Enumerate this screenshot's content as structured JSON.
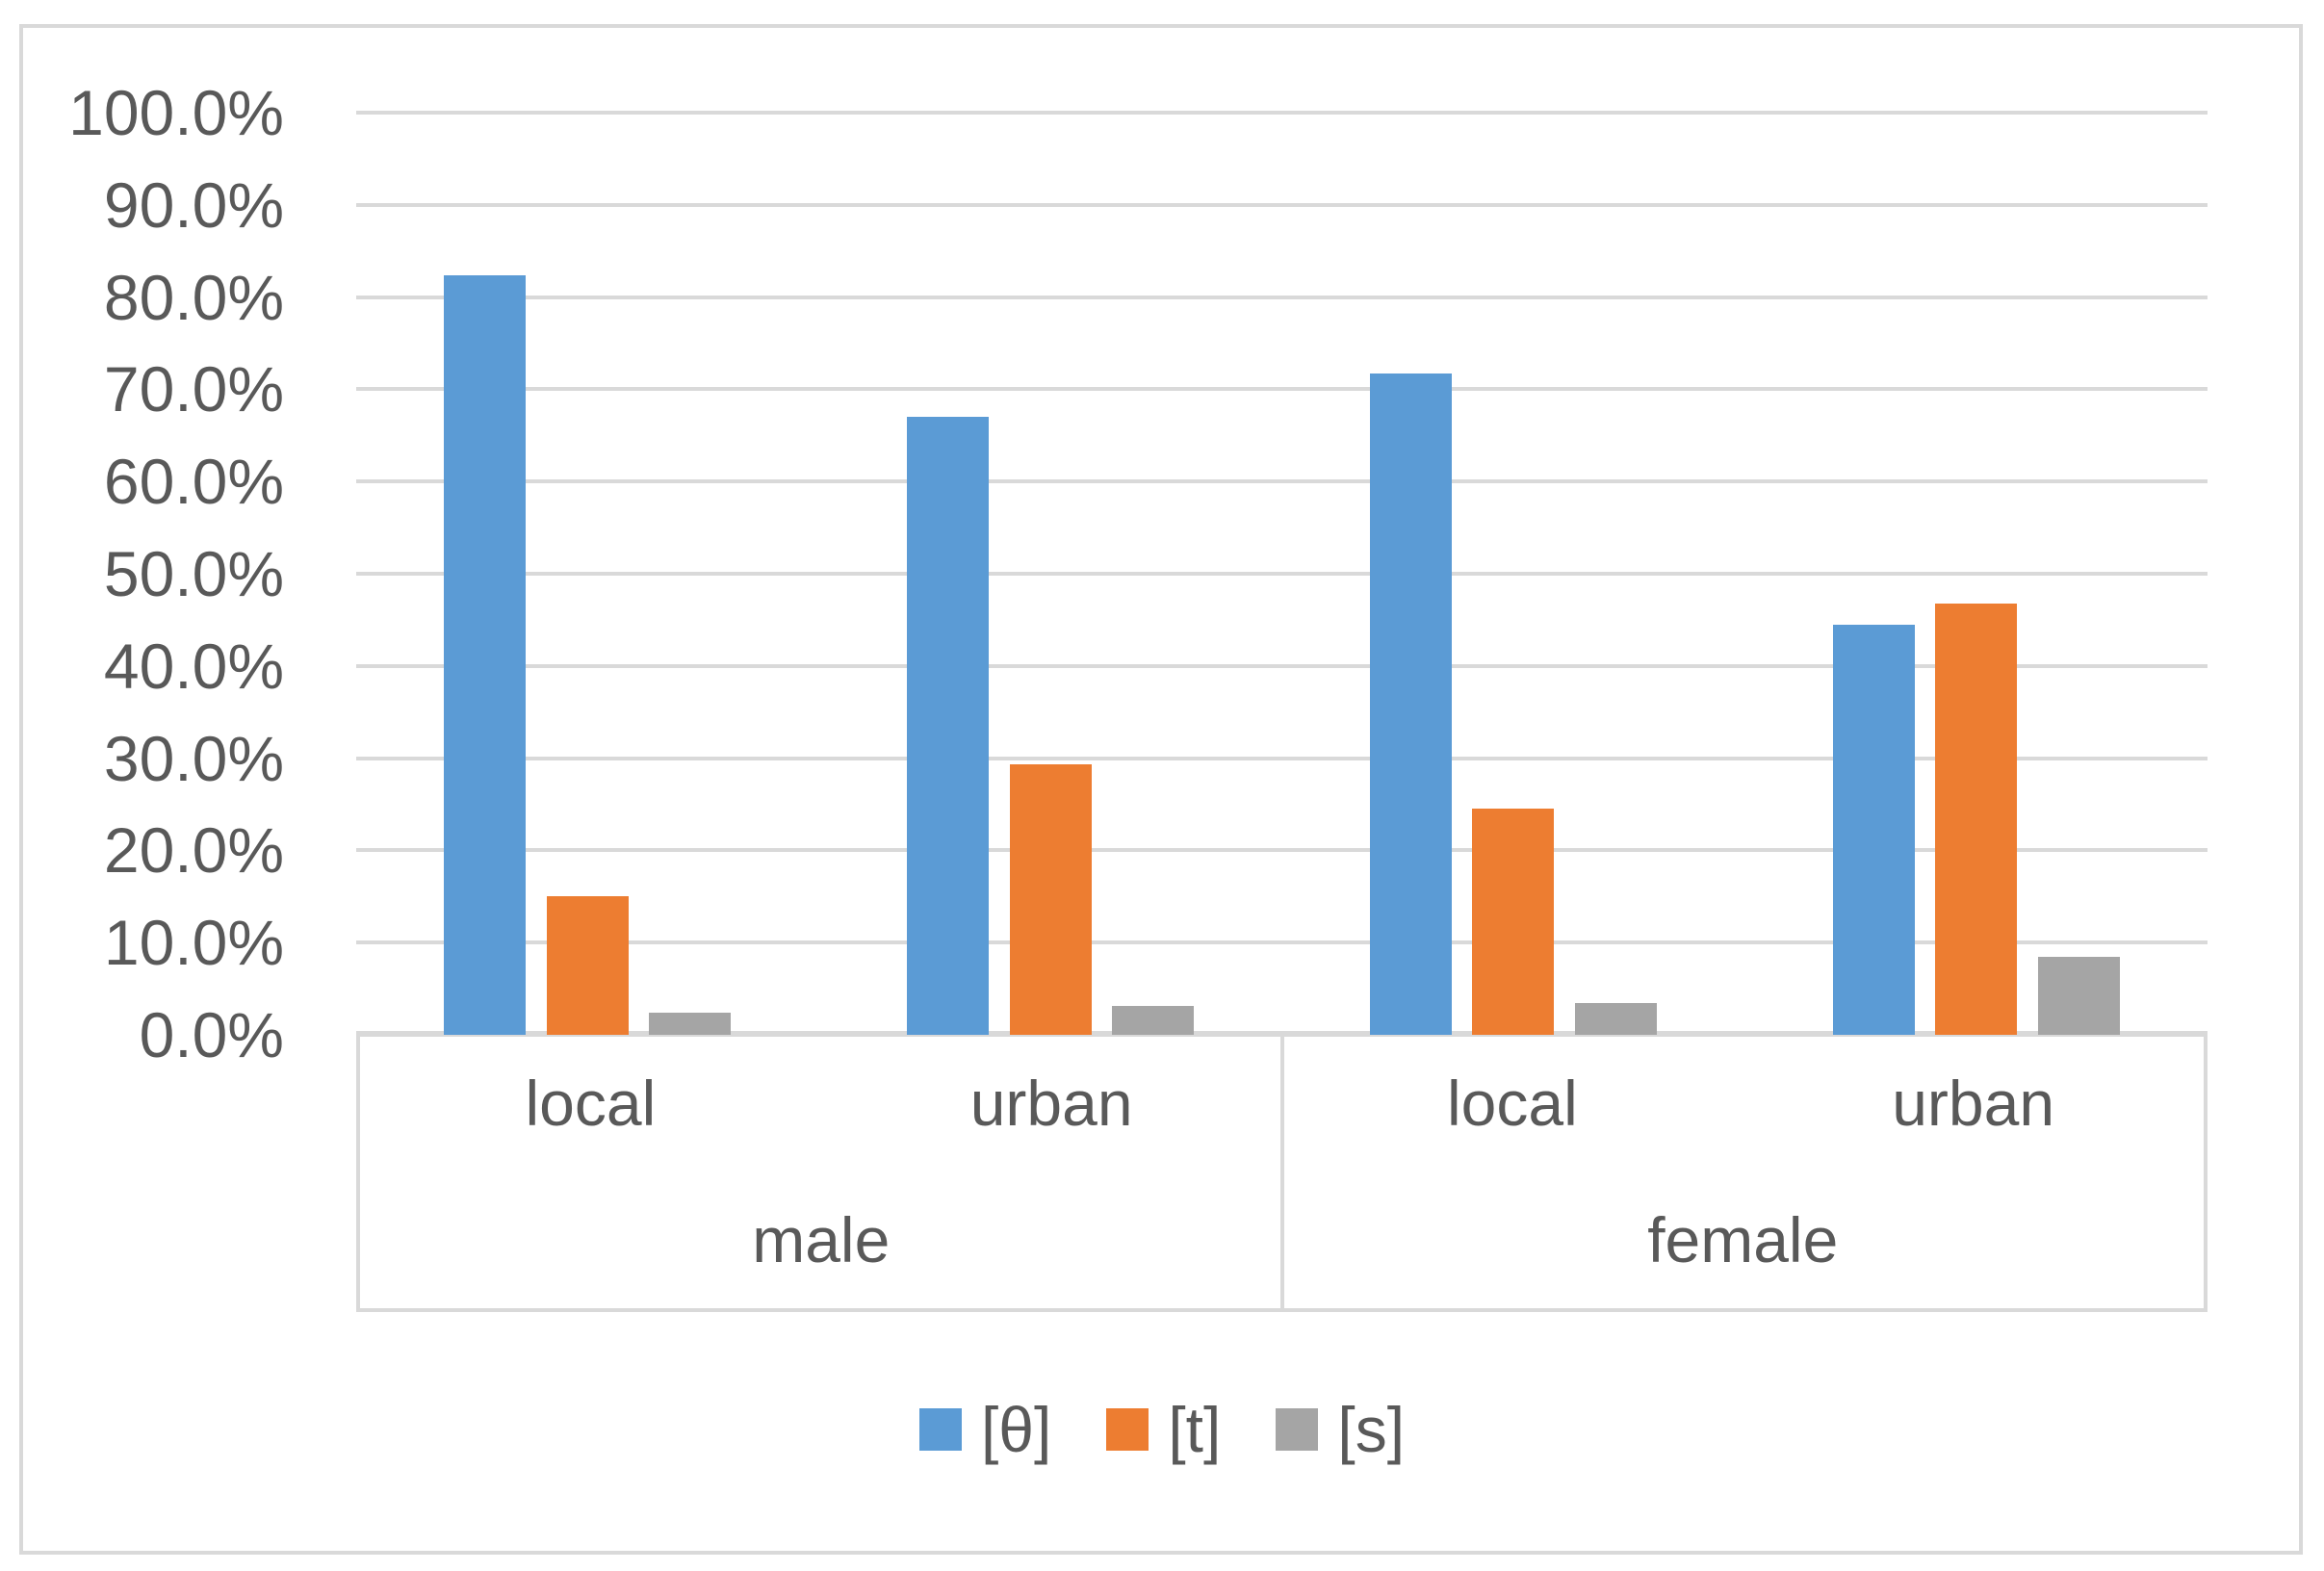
{
  "colors": {
    "background": "#ffffff",
    "gridline": "#d9d9d9",
    "frame_border": "#d9d9d9",
    "axis_text": "#595959",
    "series_blue": "#5b9bd5",
    "series_orange": "#ed7d31",
    "series_gray": "#a5a5a5"
  },
  "chart_data": {
    "type": "bar",
    "title": "",
    "grid": true,
    "legend_position": "bottom",
    "ylim": [
      0,
      100
    ],
    "yticks": [
      {
        "label": "100.0%",
        "value": 100
      },
      {
        "label": "90.0%",
        "value": 90
      },
      {
        "label": "80.0%",
        "value": 80
      },
      {
        "label": "70.0%",
        "value": 70
      },
      {
        "label": "60.0%",
        "value": 60
      },
      {
        "label": "50.0%",
        "value": 50
      },
      {
        "label": "40.0%",
        "value": 40
      },
      {
        "label": "30.0%",
        "value": 30
      },
      {
        "label": "20.0%",
        "value": 20
      },
      {
        "label": "10.0%",
        "value": 10
      },
      {
        "label": "0.0%",
        "value": 0
      }
    ],
    "categories": [
      "male local",
      "male urban",
      "female local",
      "female urban"
    ],
    "groups": [
      {
        "top": "male",
        "sub": [
          "local",
          "urban"
        ]
      },
      {
        "top": "female",
        "sub": [
          "local",
          "urban"
        ]
      }
    ],
    "series": [
      {
        "key": "theta",
        "name": "[θ]",
        "color": "#5b9bd5",
        "values": [
          82.4,
          67.0,
          71.7,
          44.5
        ]
      },
      {
        "key": "t",
        "name": "[t]",
        "color": "#ed7d31",
        "values": [
          15.0,
          29.3,
          24.5,
          46.8
        ]
      },
      {
        "key": "s",
        "name": "[s]",
        "color": "#a5a5a5",
        "values": [
          2.4,
          3.1,
          3.4,
          8.5
        ]
      }
    ]
  }
}
